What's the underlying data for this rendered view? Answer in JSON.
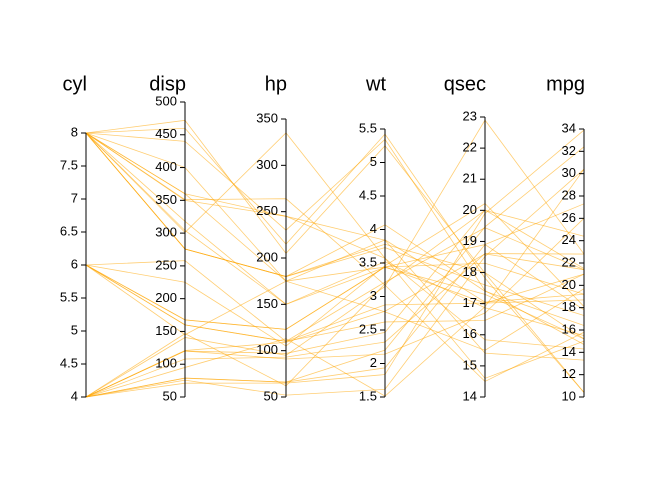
{
  "chart_data": {
    "type": "parallel",
    "color": "#FFA500",
    "axes": [
      {
        "name": "cyl",
        "ylim": [
          4,
          8
        ],
        "yticks": [
          4,
          4.5,
          5,
          5.5,
          6,
          6.5,
          7,
          7.5,
          8
        ]
      },
      {
        "name": "disp",
        "ylim": [
          50,
          500
        ],
        "yticks": [
          50,
          100,
          150,
          200,
          250,
          300,
          350,
          400,
          450,
          500
        ]
      },
      {
        "name": "hp",
        "ylim": [
          50,
          350
        ],
        "yticks": [
          50,
          100,
          150,
          200,
          250,
          300,
          350
        ]
      },
      {
        "name": "wt",
        "ylim": [
          1.5,
          5.5
        ],
        "yticks": [
          1.5,
          2,
          2.5,
          3,
          3.5,
          4,
          4.5,
          5,
          5.5
        ]
      },
      {
        "name": "qsec",
        "ylim": [
          14,
          23
        ],
        "yticks": [
          14,
          15,
          16,
          17,
          18,
          19,
          20,
          21,
          22,
          23
        ]
      },
      {
        "name": "mpg",
        "ylim": [
          10,
          34
        ],
        "yticks": [
          10,
          12,
          14,
          16,
          18,
          20,
          22,
          24,
          26,
          28,
          30,
          32,
          34
        ]
      }
    ],
    "series": [
      {
        "values": [
          6,
          160,
          110,
          2.62,
          16.46,
          21
        ]
      },
      {
        "values": [
          6,
          160,
          110,
          2.875,
          17.02,
          21
        ]
      },
      {
        "values": [
          4,
          108,
          93,
          2.32,
          18.61,
          22.8
        ]
      },
      {
        "values": [
          6,
          258,
          110,
          3.215,
          19.44,
          21.4
        ]
      },
      {
        "values": [
          8,
          360,
          175,
          3.44,
          17.02,
          18.7
        ]
      },
      {
        "values": [
          6,
          225,
          105,
          3.46,
          20.22,
          18.1
        ]
      },
      {
        "values": [
          8,
          360,
          245,
          3.57,
          15.84,
          14.3
        ]
      },
      {
        "values": [
          4,
          146.7,
          62,
          3.19,
          20,
          24.4
        ]
      },
      {
        "values": [
          4,
          140.8,
          95,
          3.15,
          22.9,
          22.8
        ]
      },
      {
        "values": [
          6,
          167.6,
          123,
          3.44,
          18.3,
          19.2
        ]
      },
      {
        "values": [
          6,
          167.6,
          123,
          3.44,
          18.9,
          17.8
        ]
      },
      {
        "values": [
          8,
          275.8,
          180,
          4.07,
          17.4,
          16.4
        ]
      },
      {
        "values": [
          8,
          275.8,
          180,
          3.73,
          17.6,
          17.3
        ]
      },
      {
        "values": [
          8,
          275.8,
          180,
          3.78,
          18,
          15.2
        ]
      },
      {
        "values": [
          8,
          472,
          205,
          5.25,
          17.98,
          10.4
        ]
      },
      {
        "values": [
          8,
          460,
          215,
          5.424,
          17.82,
          10.4
        ]
      },
      {
        "values": [
          8,
          440,
          230,
          5.345,
          17.42,
          14.7
        ]
      },
      {
        "values": [
          4,
          78.7,
          66,
          2.2,
          19.47,
          32.4
        ]
      },
      {
        "values": [
          4,
          75.7,
          52,
          1.615,
          18.52,
          30.4
        ]
      },
      {
        "values": [
          4,
          71.1,
          65,
          1.835,
          19.9,
          33.9
        ]
      },
      {
        "values": [
          4,
          120.1,
          97,
          2.465,
          20.01,
          21.5
        ]
      },
      {
        "values": [
          8,
          318,
          150,
          3.52,
          16.87,
          15.5
        ]
      },
      {
        "values": [
          8,
          304,
          150,
          3.435,
          17.3,
          15.2
        ]
      },
      {
        "values": [
          8,
          350,
          245,
          3.84,
          15.41,
          13.3
        ]
      },
      {
        "values": [
          8,
          400,
          175,
          3.845,
          17.05,
          19.2
        ]
      },
      {
        "values": [
          4,
          79,
          66,
          1.935,
          18.9,
          27.3
        ]
      },
      {
        "values": [
          4,
          120.3,
          91,
          2.14,
          16.7,
          26
        ]
      },
      {
        "values": [
          4,
          95.1,
          113,
          1.513,
          16.9,
          30.4
        ]
      },
      {
        "values": [
          8,
          351,
          264,
          3.17,
          14.5,
          15.8
        ]
      },
      {
        "values": [
          6,
          145,
          175,
          2.77,
          15.5,
          19.7
        ]
      },
      {
        "values": [
          8,
          301,
          335,
          3.57,
          14.6,
          15
        ]
      },
      {
        "values": [
          4,
          121,
          109,
          2.78,
          18.6,
          21.4
        ]
      }
    ]
  }
}
